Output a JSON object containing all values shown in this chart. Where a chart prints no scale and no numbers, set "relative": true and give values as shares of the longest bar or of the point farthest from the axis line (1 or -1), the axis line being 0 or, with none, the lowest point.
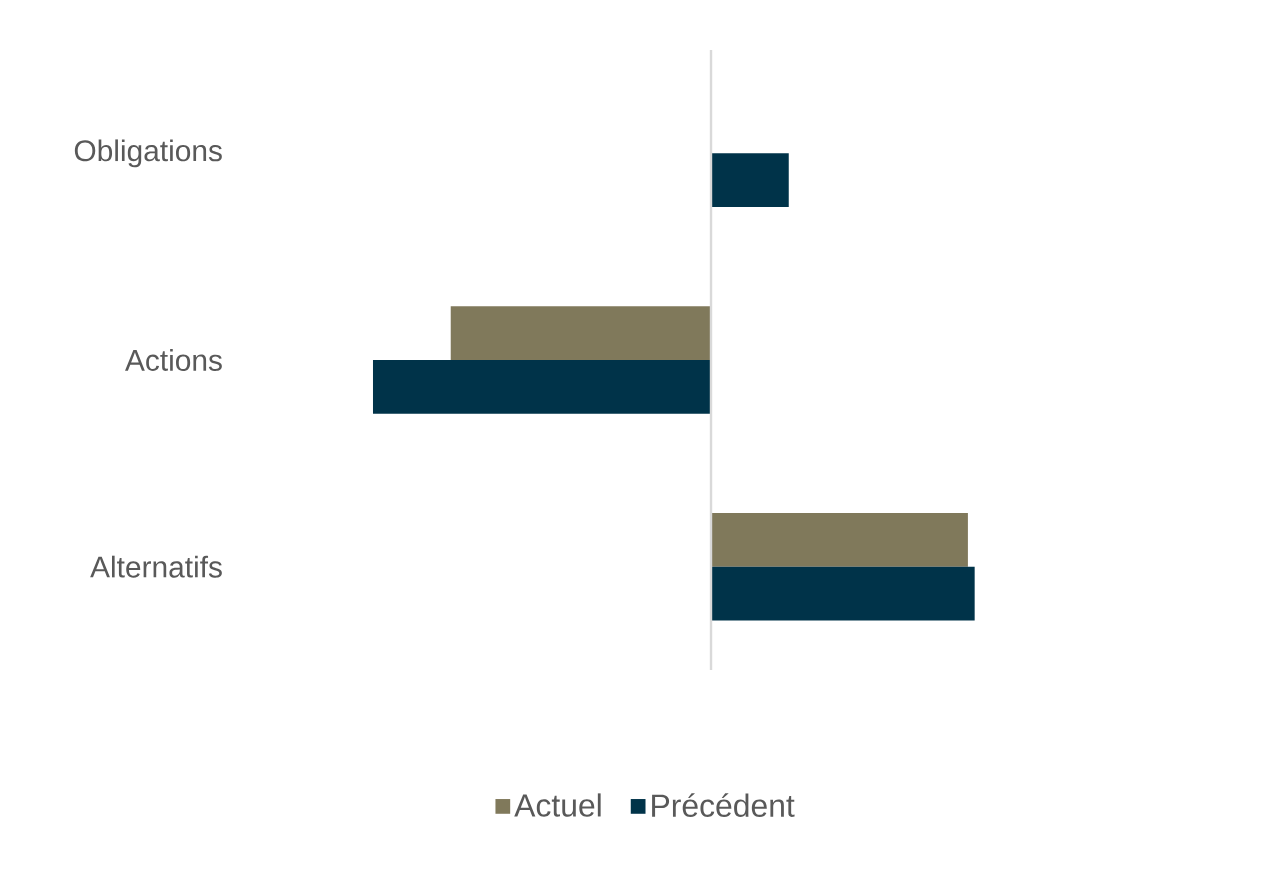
{
  "chart_data": {
    "type": "bar",
    "orientation": "horizontal",
    "relative": true,
    "categories": [
      "Obligations",
      "Actions",
      "Alternatifs"
    ],
    "series": [
      {
        "name": "Actuel",
        "color": "#80795b",
        "values": [
          0,
          -0.77,
          0.76
        ]
      },
      {
        "name": "Précédent",
        "color": "#003349",
        "values": [
          0.23,
          -1,
          0.78
        ]
      }
    ],
    "legend": "bottom",
    "grid": false
  }
}
